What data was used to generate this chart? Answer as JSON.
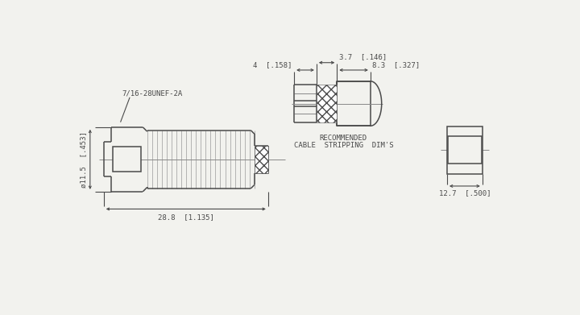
{
  "bg_color": "#f2f2ee",
  "line_color": "#4a4a4a",
  "lw": 1.1,
  "thin_lw": 0.6,
  "dim_lw": 0.8,
  "font_size": 6.5,
  "dim_28_8": "28.8  [1.135]",
  "dim_11_5": "ø11.5  [.453]",
  "dim_3_7": "3.7  [.146]",
  "dim_4": "4  [.158]",
  "dim_8_3": "8.3  [.327]",
  "dim_12_7": "12.7  [.500]",
  "label_thread": "7/16-28UNEF-2A",
  "label_rec1": "RECOMMENDED",
  "label_rec2": "CABLE  STRIPPING  DIM'S"
}
